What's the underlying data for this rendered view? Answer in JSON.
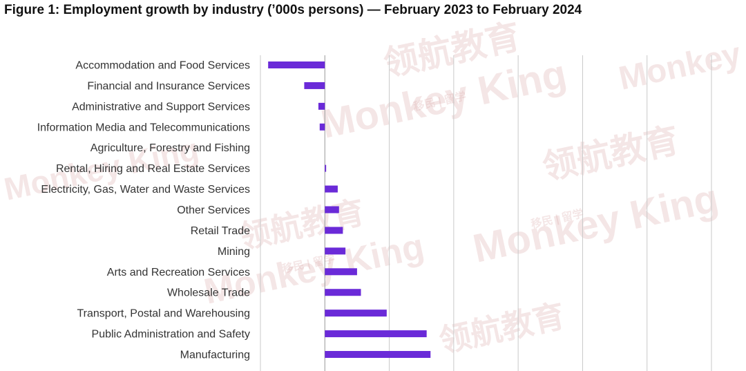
{
  "title": "Figure 1: Employment growth by industry (’000s persons) — February 2023 to February 2024",
  "watermark": {
    "logo_text": "Monkey King",
    "cn_text": "领航教育",
    "sub_text": "移民 | 留学"
  },
  "colors": {
    "bar": "#6a2ad8",
    "grid": "#c8c8c8",
    "zero_line": "#999999"
  },
  "chart_data": {
    "type": "bar",
    "orientation": "horizontal",
    "title": "Figure 1: Employment growth by industry (’000s persons) — February 2023 to February 2024",
    "categories": [
      "Accommodation and Food Services",
      "Financial and Insurance Services",
      "Administrative and Support Services",
      "Information Media and Telecommunications",
      "Agriculture, Forestry and Fishing",
      "Rental, Hiring and Real Estate Services",
      "Electricity, Gas, Water and Waste Services",
      "Other Services",
      "Retail Trade",
      "Mining",
      "Arts and Recreation Services",
      "Wholesale Trade",
      "Transport, Postal and Warehousing",
      "Public Administration and Safety",
      "Manufacturing"
    ],
    "values": [
      -44,
      -16,
      -5,
      -4,
      0,
      1,
      10,
      11,
      14,
      16,
      25,
      28,
      48,
      79,
      82
    ],
    "xlim": [
      -50,
      300
    ],
    "gridlines": [
      -50,
      0,
      50,
      100,
      150,
      200,
      250,
      300
    ],
    "grid": true,
    "legend": false
  }
}
